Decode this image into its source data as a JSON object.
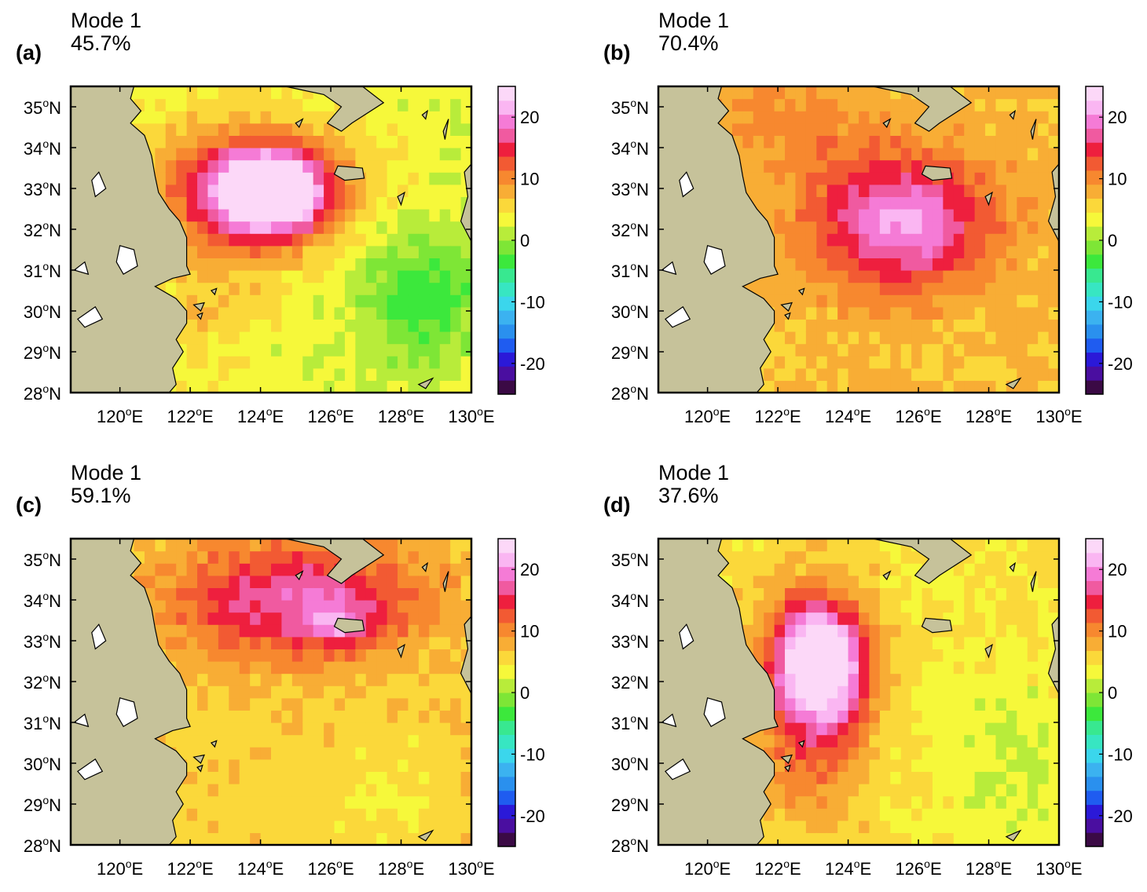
{
  "figure": {
    "panels": [
      {
        "label": "(a)",
        "title": "Mode 1",
        "variance": "45.7%"
      },
      {
        "label": "(b)",
        "title": "Mode 1",
        "variance": "70.4%"
      },
      {
        "label": "(c)",
        "title": "Mode 1",
        "variance": "59.1%"
      },
      {
        "label": "(d)",
        "title": "Mode 1",
        "variance": "37.6%"
      }
    ],
    "lon_ticks": [
      "120",
      "122",
      "124",
      "126",
      "128",
      "130"
    ],
    "lat_ticks": [
      "35",
      "34",
      "33",
      "32",
      "31",
      "30",
      "29",
      "28"
    ],
    "lon_suffix": "E",
    "lat_suffix": "N",
    "degree_mark": "o",
    "colorbar": {
      "ticks": [
        "20",
        "10",
        "0",
        "-10",
        "-20"
      ],
      "range": [
        -25,
        25
      ],
      "colors": [
        "#3b0a45",
        "#4a0ea0",
        "#2b19d8",
        "#1f5cf0",
        "#2a90ee",
        "#3bb2f0",
        "#3bd6ec",
        "#37e6c2",
        "#38e890",
        "#3ce83c",
        "#7ee636",
        "#b8ec3a",
        "#f6f83a",
        "#fbd83a",
        "#f8ad35",
        "#f7882f",
        "#f25a33",
        "#ee1f3e",
        "#f05aa0",
        "#f57bd6",
        "#fab6f2",
        "#fcd8f8"
      ]
    },
    "colors": {
      "land": "#c6c29a",
      "coast": "#000000"
    }
  }
}
